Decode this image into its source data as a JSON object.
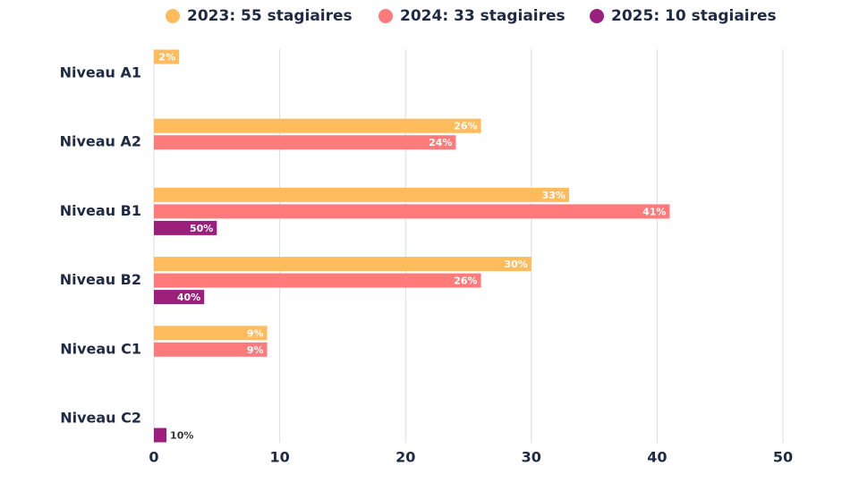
{
  "chart_data": {
    "type": "bar",
    "orientation": "horizontal",
    "categories": [
      "Niveau A1",
      "Niveau A2",
      "Niveau B1",
      "Niveau B2",
      "Niveau C1",
      "Niveau C2"
    ],
    "series": [
      {
        "name": "2023: 55 stagiaires",
        "color": "#ffbb5c",
        "values": [
          2,
          26,
          33,
          30,
          9,
          null
        ],
        "value_labels": [
          "2%",
          "26%",
          "33%",
          "30%",
          "9%",
          null
        ]
      },
      {
        "name": "2024: 33 stagiaires",
        "color": "#ff7b7b",
        "values": [
          null,
          24,
          41,
          26,
          9,
          null
        ],
        "value_labels": [
          null,
          "24%",
          "41%",
          "26%",
          "9%",
          null
        ]
      },
      {
        "name": "2025: 10 stagiaires",
        "color": "#9c1f7c",
        "values": [
          null,
          null,
          5,
          4,
          null,
          1
        ],
        "value_labels": [
          null,
          null,
          "50%",
          "40%",
          null,
          "10%"
        ]
      }
    ],
    "xlim": [
      0,
      50
    ],
    "xticks": [
      0,
      10,
      20,
      30,
      40,
      50
    ],
    "grid": true,
    "legend": "top"
  }
}
